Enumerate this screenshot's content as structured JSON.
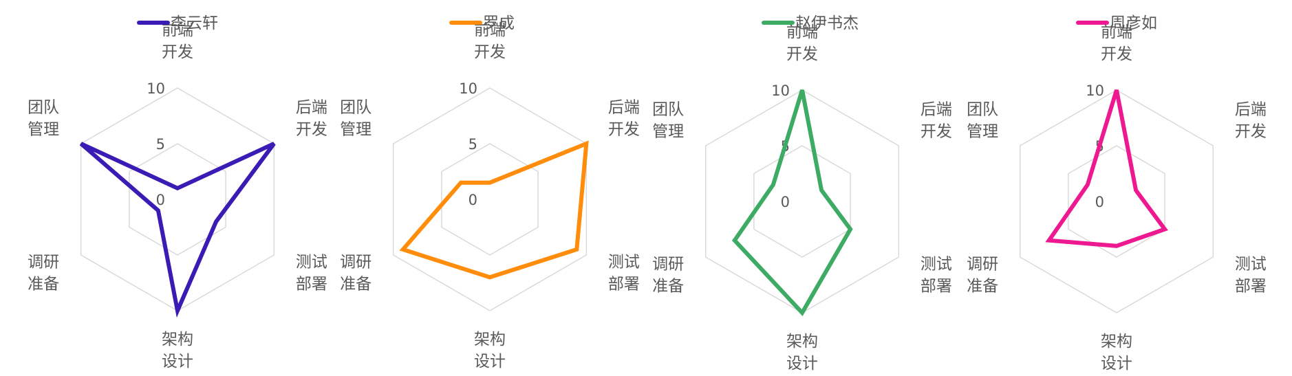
{
  "chart_data": [
    {
      "type": "radar",
      "axes": [
        [
          "前端",
          "开发"
        ],
        [
          "后端",
          "开发"
        ],
        [
          "测试",
          "部署"
        ],
        [
          "架构",
          "设计"
        ],
        [
          "调研",
          "准备"
        ],
        [
          "团队",
          "管理"
        ]
      ],
      "rlim": [
        0,
        10
      ],
      "ticks": [
        "0",
        "5",
        "10"
      ],
      "grid": true,
      "legend": "top",
      "series": [
        {
          "name": "李云轩",
          "values": [
            1,
            10,
            4,
            10,
            2,
            10
          ],
          "color": "#3a1cb5"
        }
      ]
    },
    {
      "type": "radar",
      "axes": [
        [
          "前端",
          "开发"
        ],
        [
          "后端",
          "开发"
        ],
        [
          "测试",
          "部署"
        ],
        [
          "架构",
          "设计"
        ],
        [
          "调研",
          "准备"
        ],
        [
          "团队",
          "管理"
        ]
      ],
      "rlim": [
        0,
        10
      ],
      "ticks": [
        "0",
        "5",
        "10"
      ],
      "grid": true,
      "legend": "top",
      "series": [
        {
          "name": "罗成",
          "values": [
            1.5,
            10,
            9,
            7,
            9,
            3
          ],
          "color": "#ff8c0a"
        }
      ]
    },
    {
      "type": "radar",
      "axes": [
        [
          "前端",
          "开发"
        ],
        [
          "后端",
          "开发"
        ],
        [
          "测试",
          "部署"
        ],
        [
          "架构",
          "设计"
        ],
        [
          "调研",
          "准备"
        ],
        [
          "团队",
          "管理"
        ]
      ],
      "rlim": [
        0,
        10
      ],
      "ticks": [
        "0",
        "5",
        "10"
      ],
      "grid": true,
      "legend": "top",
      "series": [
        {
          "name": "赵伊书杰",
          "values": [
            10,
            2,
            5,
            10,
            7,
            3
          ],
          "color": "#3dab64"
        }
      ]
    },
    {
      "type": "radar",
      "axes": [
        [
          "前端",
          "开发"
        ],
        [
          "后端",
          "开发"
        ],
        [
          "测试",
          "部署"
        ],
        [
          "架构",
          "设计"
        ],
        [
          "调研",
          "准备"
        ],
        [
          "团队",
          "管理"
        ]
      ],
      "rlim": [
        0,
        10
      ],
      "ticks": [
        "0",
        "5",
        "10"
      ],
      "grid": true,
      "legend": "top",
      "series": [
        {
          "name": "周彦如",
          "values": [
            10,
            2,
            5,
            4,
            7,
            3
          ],
          "color": "#ee1891"
        }
      ]
    }
  ]
}
